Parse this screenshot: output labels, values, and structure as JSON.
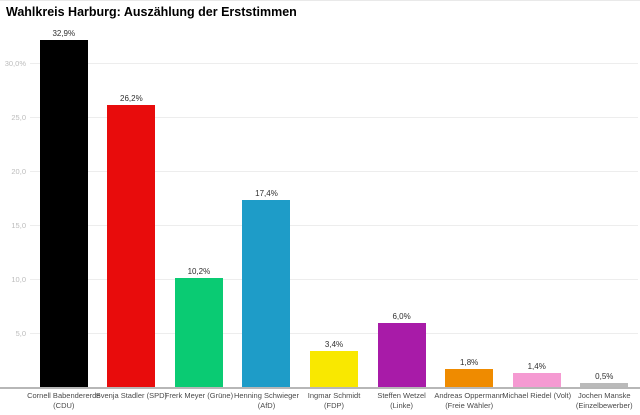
{
  "chart_data": {
    "type": "bar",
    "title": "Wahlkreis Harburg: Auszählung der Erststimmen",
    "unit": "%",
    "xlabel": "",
    "ylabel": "",
    "ylim": [
      0,
      33.2
    ],
    "grid": "horizontal",
    "legend": "none",
    "categories": [
      "Cornell Babendererde (CDU)",
      "Svenja Stadler (SPD)",
      "Frerk Meyer (Grüne)",
      "Henning Schwieger (AfD)",
      "Ingmar Schmidt (FDP)",
      "Steffen Wetzel (Linke)",
      "Andreas Oppermann (Freie Wähler)",
      "Michael Riedel (Volt)",
      "Jochen Manske (Einzelbewerber)"
    ],
    "category_label_lines": [
      [
        "Cornell Babendererde",
        "(CDU)"
      ],
      [
        "Svenja Stadler (SPD)"
      ],
      [
        "Frerk Meyer (Grüne)"
      ],
      [
        "Henning Schwieger",
        "(AfD)"
      ],
      [
        "Ingmar Schmidt",
        "(FDP)"
      ],
      [
        "Steffen Wetzel",
        "(Linke)"
      ],
      [
        "Andreas Oppermann",
        "(Freie Wähler)"
      ],
      [
        "Michael Riedel (Volt)"
      ],
      [
        "Jochen Manske",
        "(Einzelbewerber)"
      ]
    ],
    "values": [
      32.9,
      26.2,
      10.2,
      17.4,
      3.4,
      6.0,
      1.8,
      1.4,
      0.5
    ],
    "value_labels": [
      "32,9%",
      "26,2%",
      "10,2%",
      "17,4%",
      "3,4%",
      "6,0%",
      "1,8%",
      "1,4%",
      "0,5%"
    ],
    "bar_colors": [
      "#000000",
      "#e80c0c",
      "#0acb73",
      "#1e9cc8",
      "#f9e800",
      "#a81ba8",
      "#ef8b00",
      "#f59ad2",
      "#bababa"
    ],
    "yticks": [
      {
        "value": 5,
        "label": "5,0"
      },
      {
        "value": 10,
        "label": "10,0"
      },
      {
        "value": 15,
        "label": "15,0"
      },
      {
        "value": 20,
        "label": "20,0"
      },
      {
        "value": 25,
        "label": "25,0"
      },
      {
        "value": 30,
        "label": "30,0%"
      }
    ],
    "colors": {
      "background": "#ffffff",
      "title": "#000000",
      "gridline": "#ededed",
      "axis_line": "#b7b7b7",
      "tick_label": "#bcbcbc",
      "value_label": "#2f2f2f",
      "category_label": "#4a4a4a"
    }
  }
}
